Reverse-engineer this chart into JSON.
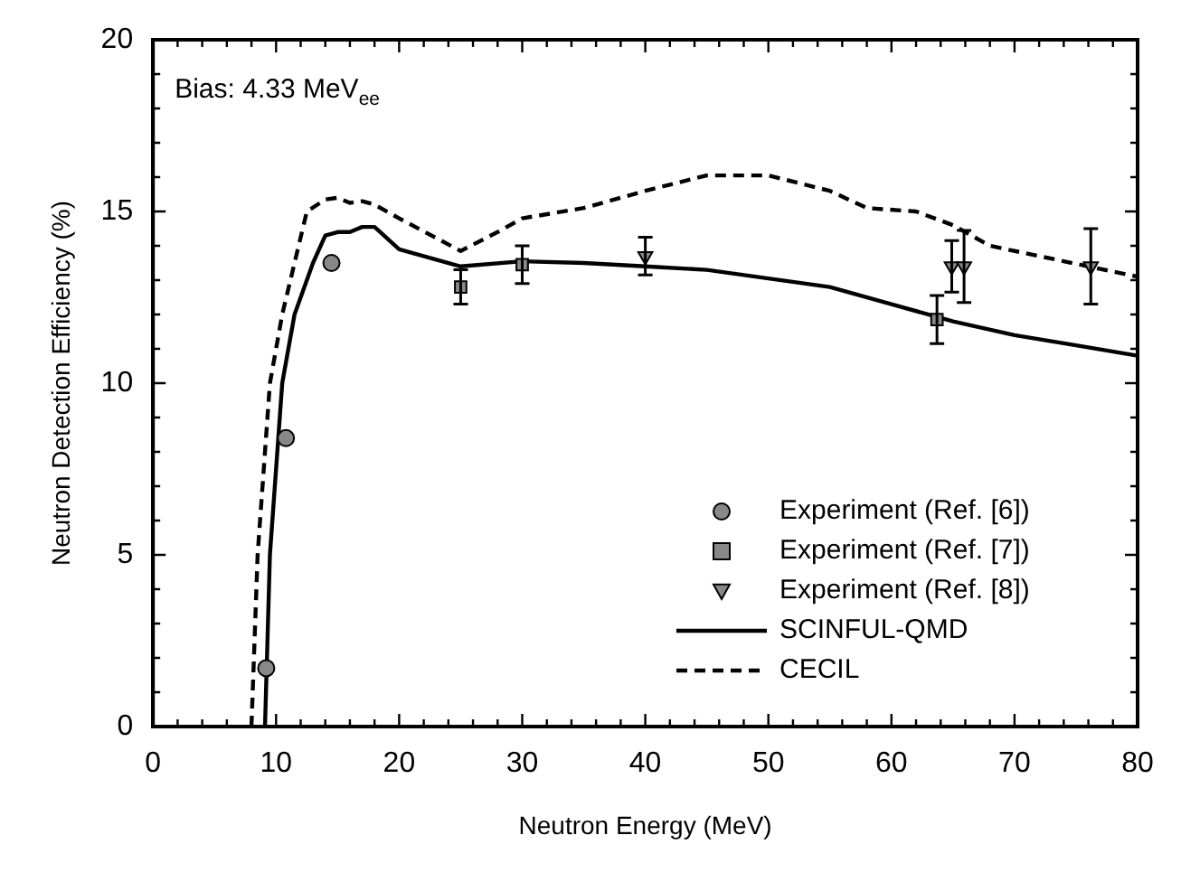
{
  "chart_data": {
    "type": "scatter",
    "xlabel": "Neutron Energy (MeV)",
    "ylabel": "Neutron Detection Efficiency (%)",
    "annotations": [
      "Bias: 4.33 MeV$_{ee}$"
    ],
    "xlim": [
      0,
      80
    ],
    "ylim": [
      0,
      20
    ],
    "xticks": [
      0,
      {
        "value": 2,
        "label": null
      },
      {
        "value": 4,
        "label": null
      },
      {
        "value": 6,
        "label": null
      },
      {
        "value": 8,
        "label": null
      },
      10,
      {
        "value": 12,
        "label": null
      },
      {
        "value": 14,
        "label": null
      },
      {
        "value": 16,
        "label": null
      },
      {
        "value": 18,
        "label": null
      },
      20,
      {
        "value": 22,
        "label": null
      },
      {
        "value": 24,
        "label": null
      },
      {
        "value": 26,
        "label": null
      },
      {
        "value": 28,
        "label": null
      },
      30,
      {
        "value": 32,
        "label": null
      },
      {
        "value": 34,
        "label": null
      },
      {
        "value": 36,
        "label": null
      },
      {
        "value": 38,
        "label": null
      },
      40,
      {
        "value": 42,
        "label": null
      },
      {
        "value": 44,
        "label": null
      },
      {
        "value": 46,
        "label": null
      },
      {
        "value": 48,
        "label": null
      },
      50,
      {
        "value": 52,
        "label": null
      },
      {
        "value": 54,
        "label": null
      },
      {
        "value": 56,
        "label": null
      },
      {
        "value": 58,
        "label": null
      },
      60,
      {
        "value": 62,
        "label": null
      },
      {
        "value": 64,
        "label": null
      },
      {
        "value": 66,
        "label": null
      },
      {
        "value": 68,
        "label": null
      },
      70,
      {
        "value": 72,
        "label": null
      },
      {
        "value": 74,
        "label": null
      },
      {
        "value": 76,
        "label": null
      },
      {
        "value": 78,
        "label": null
      },
      80
    ],
    "yticks": [
      0,
      {
        "value": 1,
        "label": null
      },
      {
        "value": 2,
        "label": null
      },
      {
        "value": 3,
        "label": null
      },
      {
        "value": 4,
        "label": null
      },
      5,
      {
        "value": 6,
        "label": null
      },
      {
        "value": 7,
        "label": null
      },
      {
        "value": 8,
        "label": null
      },
      {
        "value": 9,
        "label": null
      },
      10,
      {
        "value": 11,
        "label": null
      },
      {
        "value": 12,
        "label": null
      },
      {
        "value": 13,
        "label": null
      },
      {
        "value": 14,
        "label": null
      },
      15,
      {
        "value": 16,
        "label": null
      },
      {
        "value": 17,
        "label": null
      },
      {
        "value": 18,
        "label": null
      },
      {
        "value": 19,
        "label": null
      },
      20
    ],
    "grid": false,
    "legend": "bottom right",
    "series": [
      {
        "name": "Experiment (Ref. [6])",
        "type": "scatter",
        "marker": "circle",
        "color": "#888888",
        "x": [
          9.2,
          10.8,
          14.5
        ],
        "values": [
          1.7,
          8.4,
          13.5
        ]
      },
      {
        "name": "Experiment (Ref. [7])",
        "type": "scatter",
        "marker": "square",
        "color": "#888888",
        "x": [
          25,
          30,
          63.7
        ],
        "values": [
          12.8,
          13.45,
          11.85
        ],
        "errors": [
          0.5,
          0.55,
          0.7
        ]
      },
      {
        "name": "Experiment (Ref. [8])",
        "type": "scatter",
        "marker": "triangle",
        "color": "#888888",
        "x": [
          40,
          64.9,
          65.9,
          76.2
        ],
        "values": [
          13.7,
          13.4,
          13.4,
          13.4
        ],
        "errors": [
          0.55,
          0.75,
          1.05,
          1.1
        ]
      },
      {
        "name": "SCINFUL-QMD",
        "type": "line",
        "marker": "none",
        "line_style": "solid",
        "color": "#000000",
        "x": [
          9.1,
          9.5,
          10.5,
          11.5,
          13,
          14,
          15,
          16,
          17,
          18,
          20,
          25,
          30,
          35,
          40,
          45,
          50,
          55,
          60,
          65,
          70,
          75,
          80
        ],
        "values": [
          0,
          5,
          10,
          12,
          13.5,
          14.3,
          14.4,
          14.4,
          14.55,
          14.55,
          13.9,
          13.4,
          13.55,
          13.5,
          13.4,
          13.3,
          13.05,
          12.8,
          12.3,
          11.8,
          11.4,
          11.1,
          10.8
        ]
      },
      {
        "name": "CECIL",
        "type": "line",
        "marker": "none",
        "line_style": "dashed",
        "color": "#000000",
        "x": [
          8,
          8.5,
          9.5,
          10.5,
          11.5,
          12.5,
          14,
          15,
          16,
          17,
          18,
          20,
          25,
          28,
          30,
          35,
          40,
          45,
          50,
          55,
          58,
          62,
          65,
          68,
          72,
          76,
          80
        ],
        "values": [
          0,
          5,
          10,
          12,
          13.5,
          15,
          15.35,
          15.4,
          15.25,
          15.3,
          15.2,
          14.8,
          13.85,
          14.4,
          14.8,
          15.1,
          15.6,
          16.05,
          16.05,
          15.6,
          15.1,
          15,
          14.6,
          14,
          13.7,
          13.4,
          13.1
        ]
      }
    ]
  }
}
